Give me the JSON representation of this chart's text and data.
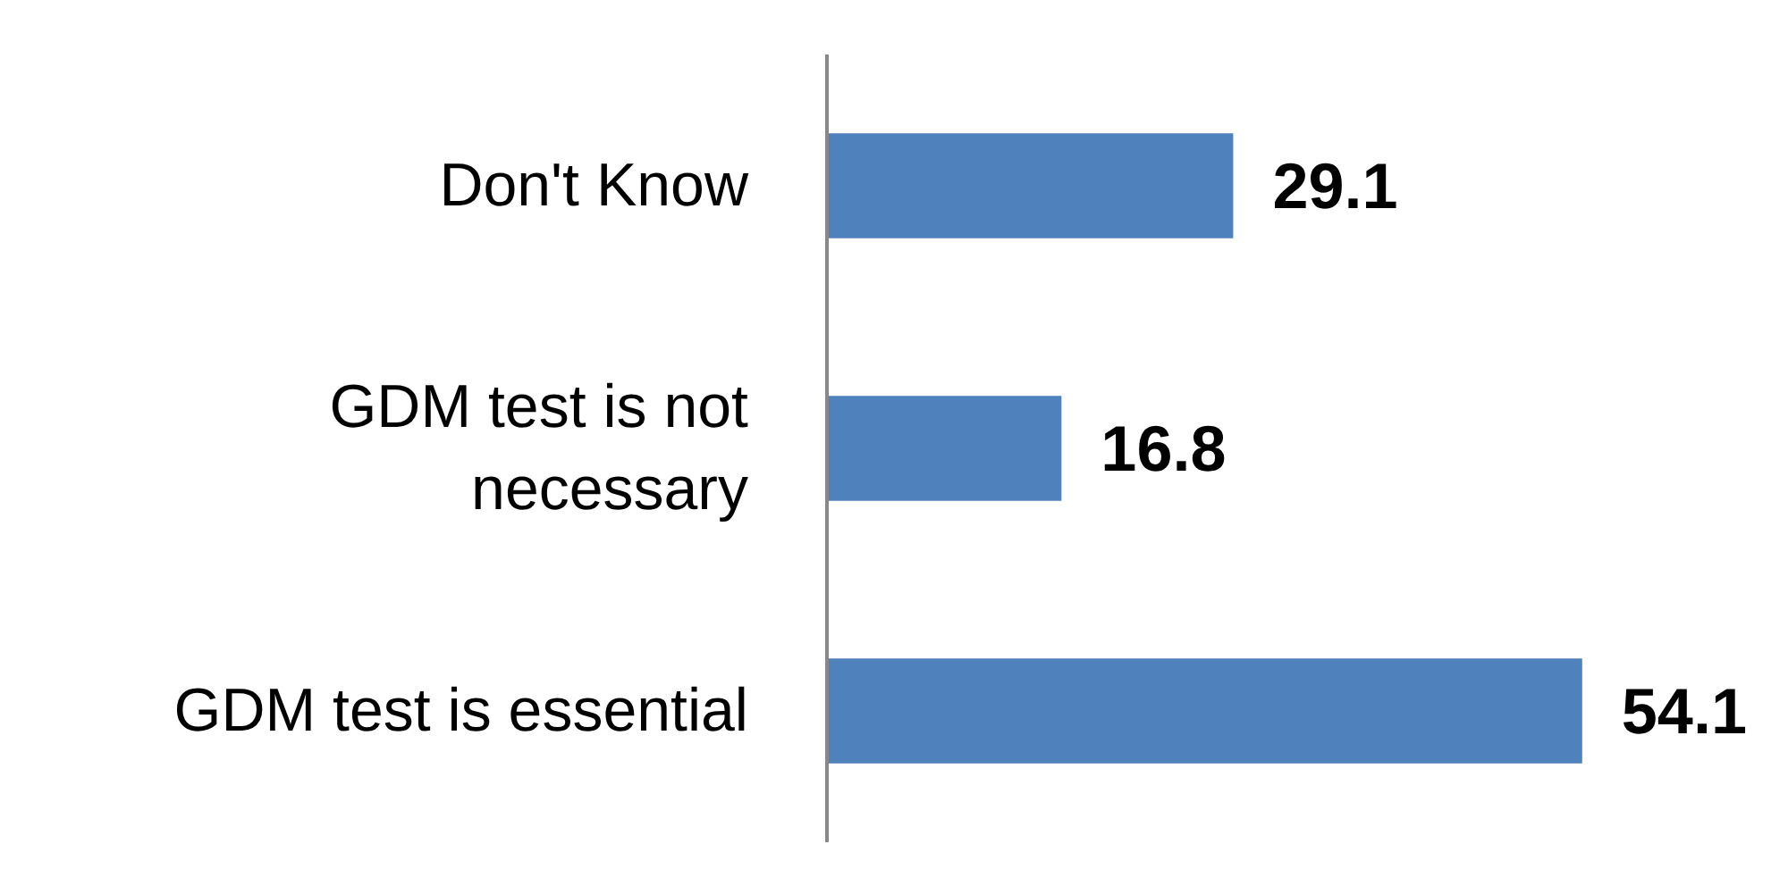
{
  "chart_data": {
    "type": "bar",
    "orientation": "horizontal",
    "categories": [
      "Don't Know",
      "GDM test is not necessary",
      "GDM test is essential"
    ],
    "values": [
      29.1,
      16.8,
      54.1
    ],
    "color": "#4f81bd",
    "data_labels": true
  }
}
